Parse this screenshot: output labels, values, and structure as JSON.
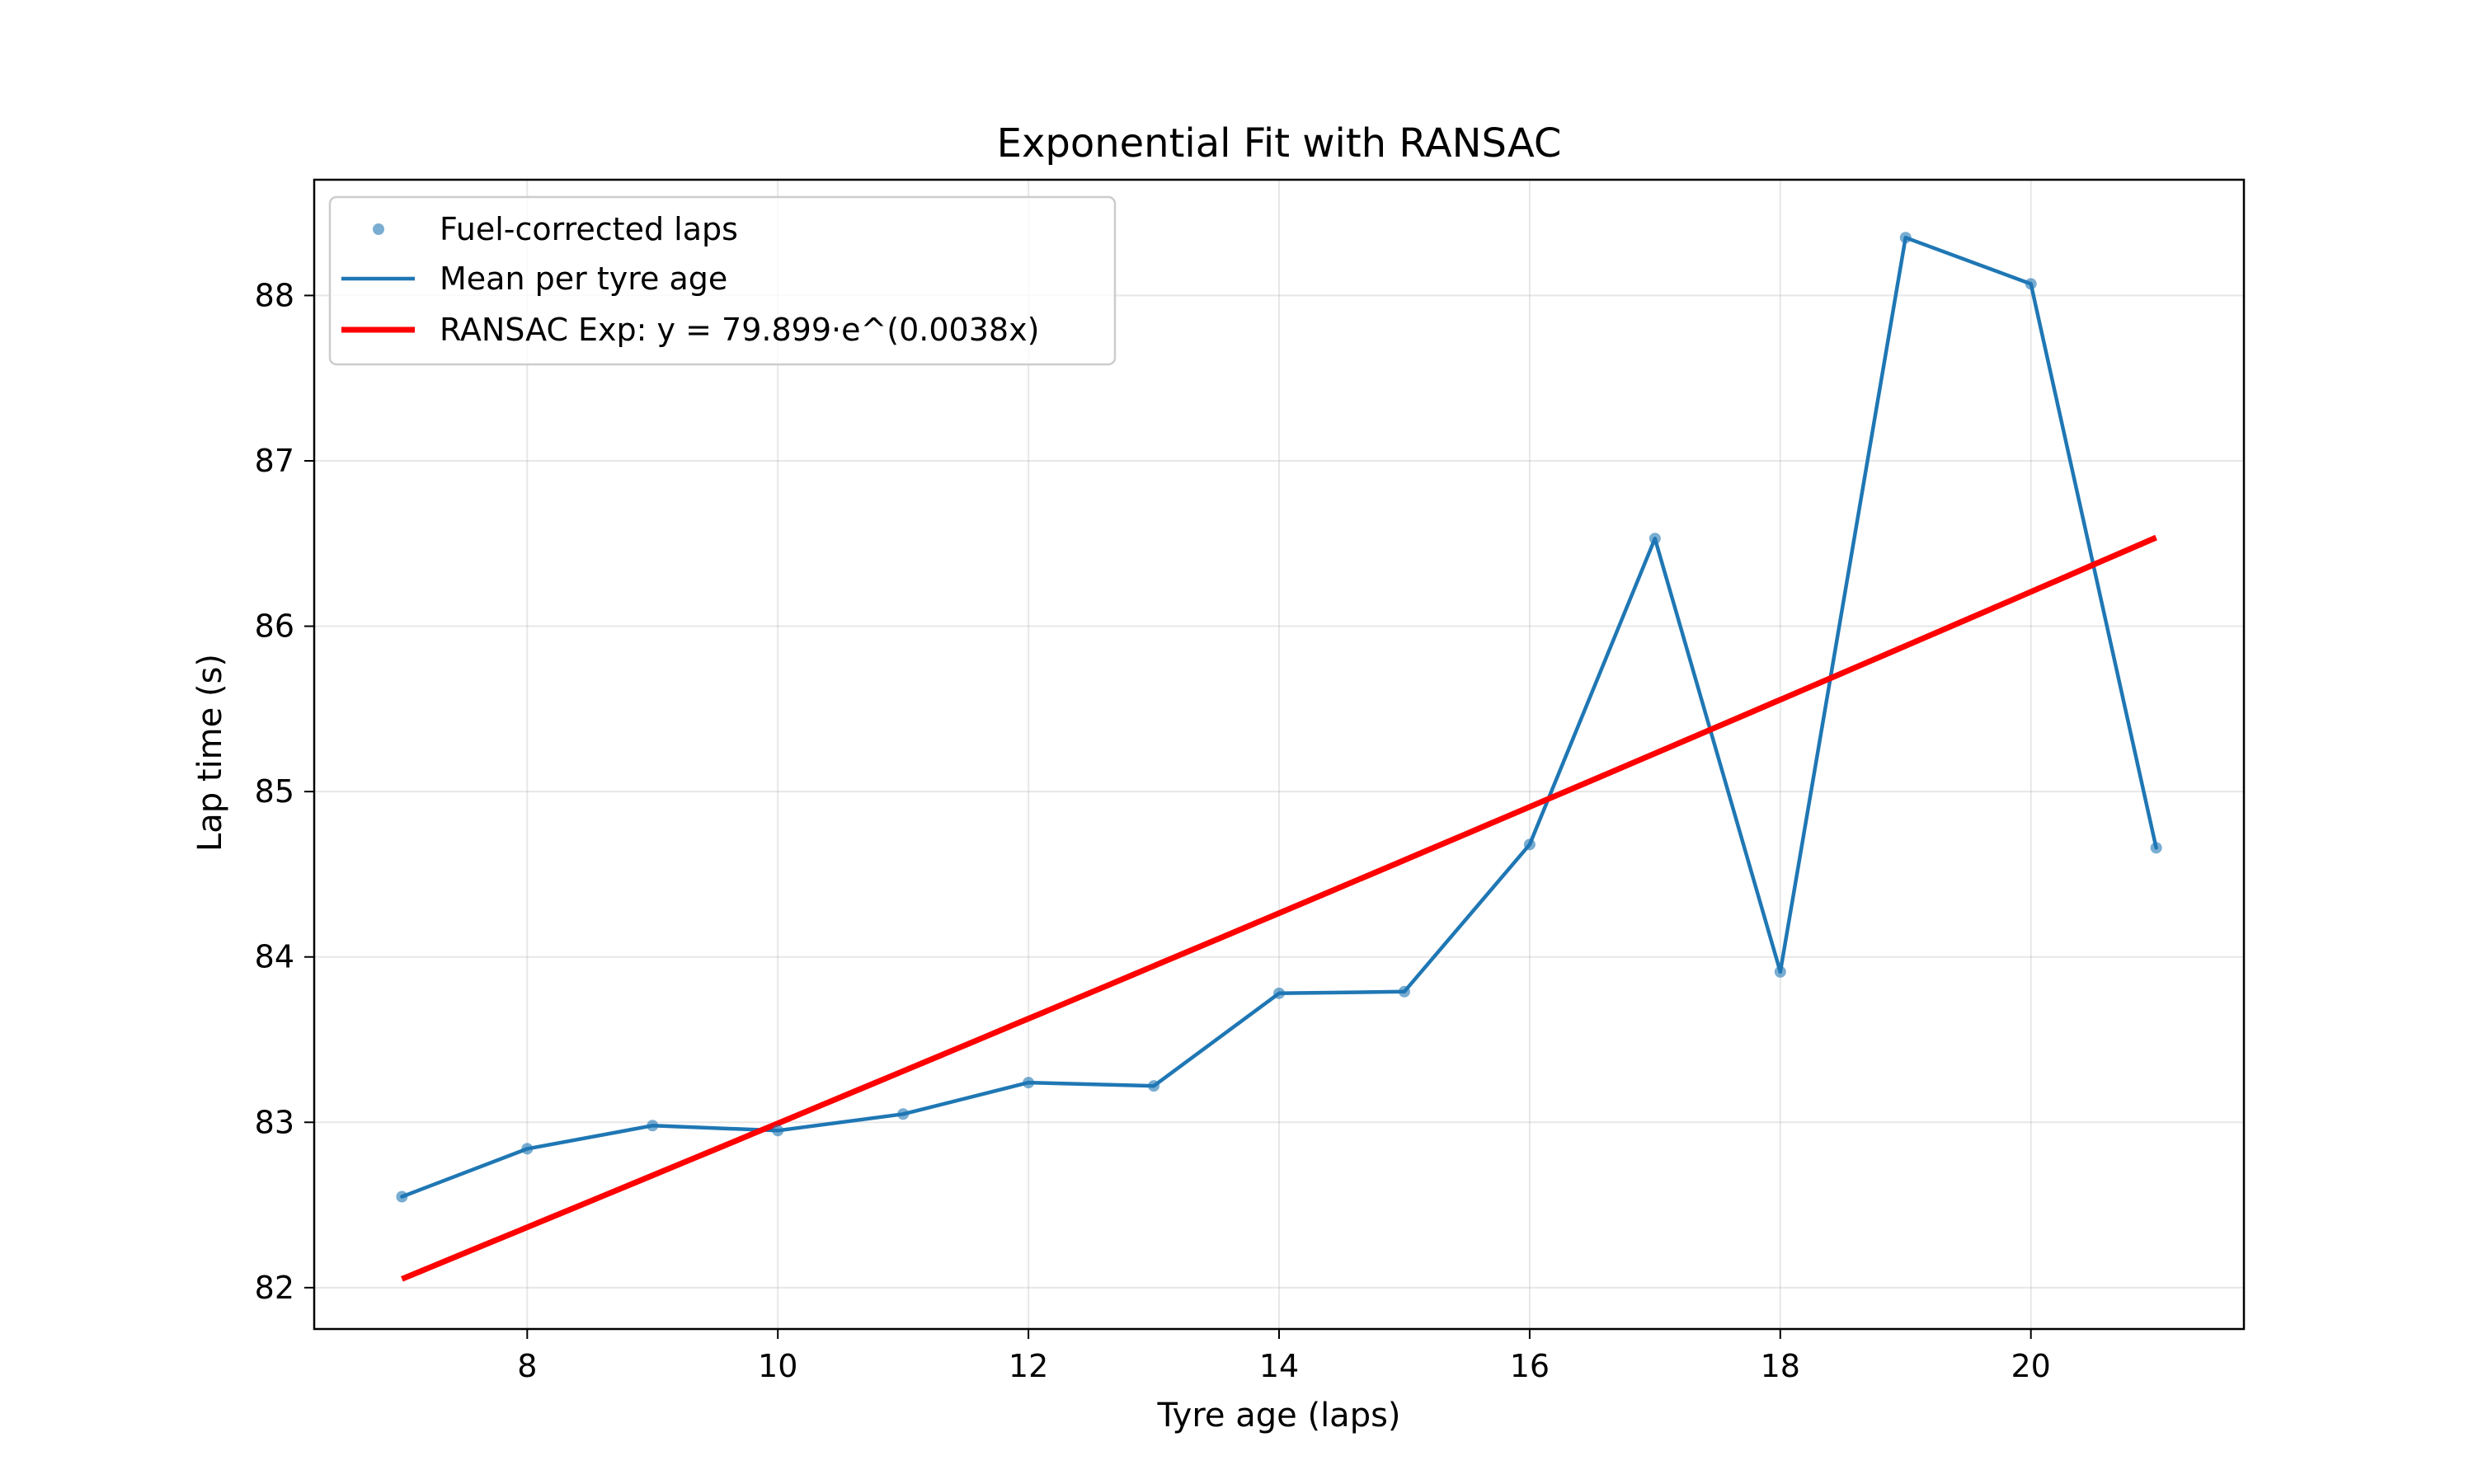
{
  "chart_data": {
    "type": "line",
    "title": "Exponential Fit with RANSAC",
    "xlabel": "Tyre age (laps)",
    "ylabel": "Lap time (s)",
    "xlim": [
      6.3,
      21.7
    ],
    "ylim": [
      81.75,
      88.7
    ],
    "xticks": [
      8,
      10,
      12,
      14,
      16,
      18,
      20
    ],
    "yticks": [
      82,
      83,
      84,
      85,
      86,
      87,
      88
    ],
    "grid": true,
    "legend_position": "top-left",
    "series": [
      {
        "name": "Fuel-corrected laps",
        "kind": "scatter",
        "color": "#1f77b4",
        "x": [
          7,
          8,
          9,
          10,
          11,
          12,
          13,
          14,
          15,
          16,
          17,
          18,
          19,
          20,
          21
        ],
        "y": [
          82.55,
          82.84,
          82.98,
          82.95,
          83.05,
          83.24,
          83.22,
          83.78,
          83.79,
          84.68,
          86.53,
          83.91,
          88.35,
          88.07,
          84.66
        ]
      },
      {
        "name": "Mean per tyre age",
        "kind": "line",
        "color": "#1f77b4",
        "x": [
          7,
          8,
          9,
          10,
          11,
          12,
          13,
          14,
          15,
          16,
          17,
          18,
          19,
          20,
          21
        ],
        "y": [
          82.55,
          82.84,
          82.98,
          82.95,
          83.05,
          83.24,
          83.22,
          83.78,
          83.79,
          84.68,
          86.53,
          83.91,
          88.35,
          88.07,
          84.66
        ]
      },
      {
        "name": "RANSAC Exp: y = 79.899·e^(0.0038x)",
        "kind": "fit",
        "color": "#ff0000",
        "fit_a": 79.899,
        "fit_b": 0.0038,
        "x_range": [
          7,
          21
        ]
      }
    ]
  }
}
